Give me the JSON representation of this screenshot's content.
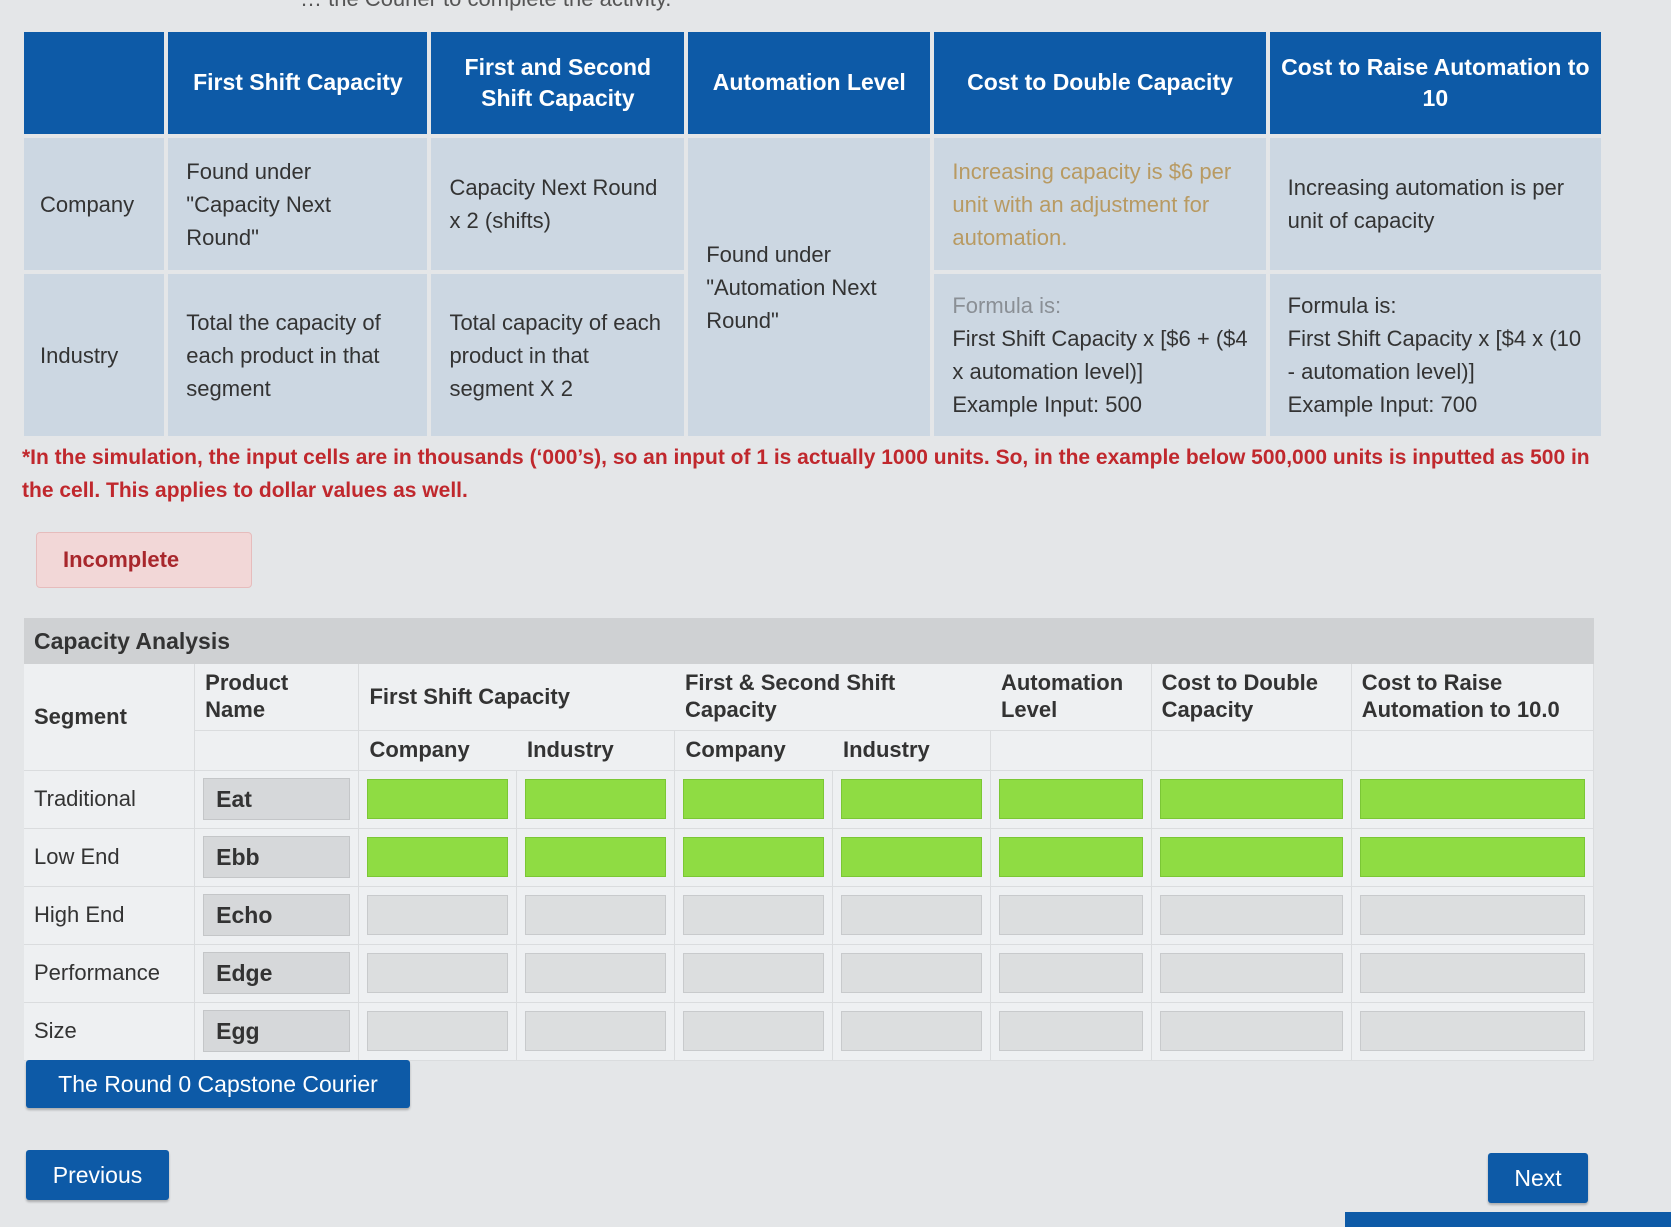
{
  "top_instruction": "… the Courier to complete the activity.",
  "reference": {
    "headers": [
      "",
      "First Shift Capacity",
      "First and Second Shift Capacity",
      "Automation Level",
      "Cost to Double Capacity",
      "Cost to Raise Automation to 10"
    ],
    "company": {
      "label": "Company",
      "first_shift": "Found under \"Capacity Next Round\"",
      "first_second": "Capacity Next Round x 2 (shifts)",
      "cost_double": "Increasing capacity is $6 per unit with an adjustment for automation.",
      "cost_raise": "Increasing automation is per unit of capacity"
    },
    "automation": "Found under \"Automation Next Round\"",
    "industry": {
      "label": "Industry",
      "first_shift": "Total the capacity of each product in that segment",
      "first_second": "Total capacity of each product in that segment X 2",
      "cost_double_formula_label": "Formula is:",
      "cost_double_formula": "First Shift Capacity x [$6 + ($4 x automation level)]",
      "cost_double_example": "Example Input: 500",
      "cost_raise_formula_label": "Formula is:",
      "cost_raise_formula": "First Shift Capacity x [$4 x (10 - automation level)]",
      "cost_raise_example": "Example Input: 700"
    }
  },
  "note": "*In the simulation, the input cells are in thousands (‘000’s), so an input of 1 is actually 1000 units. So, in the example below 500,000 units is inputted as 500 in the cell. This applies to dollar values as well.",
  "status": "Incomplete",
  "capacity_analysis": {
    "title": "Capacity Analysis",
    "headers": {
      "segment": "Segment",
      "product": "Product Name",
      "first_shift": "First Shift Capacity",
      "first_second": "First & Second Shift Capacity",
      "automation": "Automation Level",
      "cost_double": "Cost to Double Capacity",
      "cost_raise": "Cost to Raise Automation to 10.0",
      "company": "Company",
      "industry": "Industry"
    },
    "rows": [
      {
        "segment": "Traditional",
        "product": "Eat",
        "state": "highlighted"
      },
      {
        "segment": "Low End",
        "product": "Ebb",
        "state": "highlighted"
      },
      {
        "segment": "High End",
        "product": "Echo",
        "state": "empty"
      },
      {
        "segment": "Performance",
        "product": "Edge",
        "state": "empty"
      },
      {
        "segment": "Size",
        "product": "Egg",
        "state": "empty"
      }
    ]
  },
  "buttons": {
    "courier": "The Round 0 Capstone Courier",
    "previous": "Previous",
    "next": "Next"
  },
  "colors": {
    "header_blue": "#0d5aa7",
    "highlight_green": "#8fdc43",
    "incomplete_red": "#c0282d"
  }
}
